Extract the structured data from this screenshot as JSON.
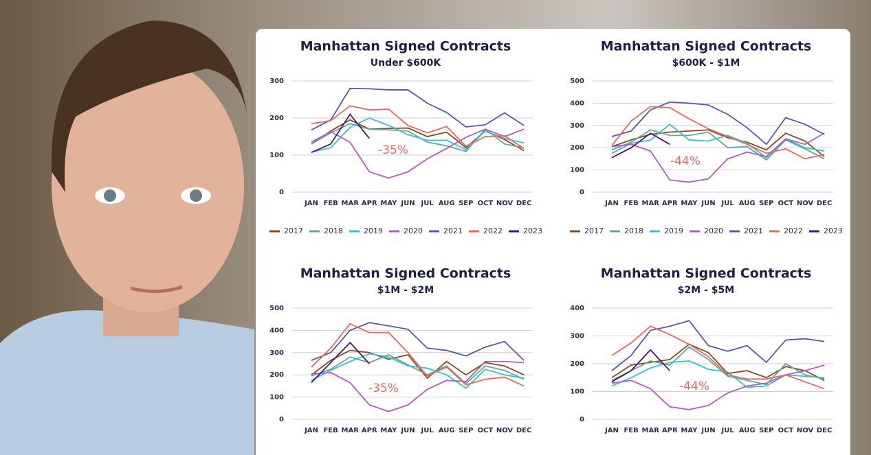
{
  "chart_data": [
    {
      "type": "line",
      "title": "Manhattan Signed Contracts",
      "subtitle": "Under $600K",
      "annotation": "-35%",
      "categories": [
        "JAN",
        "FEB",
        "MAR",
        "APR",
        "MAY",
        "JUN",
        "JUL",
        "AUG",
        "SEP",
        "OCT",
        "NOV",
        "DEC"
      ],
      "ylim": [
        0,
        300
      ],
      "yticks": [
        0,
        100,
        200,
        300
      ],
      "grid": true,
      "series": [
        {
          "name": "2017",
          "color": "#8a4a1c",
          "values": [
            130,
            165,
            195,
            170,
            172,
            173,
            150,
            162,
            120,
            165,
            142,
            112
          ]
        },
        {
          "name": "2018",
          "color": "#5fa89a",
          "values": [
            130,
            160,
            185,
            170,
            168,
            165,
            135,
            125,
            110,
            170,
            130,
            120
          ]
        },
        {
          "name": "2019",
          "color": "#2ec5d3",
          "values": [
            108,
            120,
            175,
            200,
            180,
            155,
            140,
            140,
            115,
            165,
            145,
            133
          ]
        },
        {
          "name": "2020",
          "color": "#b05cc0",
          "values": [
            135,
            163,
            135,
            55,
            38,
            55,
            90,
            118,
            148,
            170,
            150,
            170
          ]
        },
        {
          "name": "2021",
          "color": "#5a55b0",
          "values": [
            168,
            195,
            280,
            279,
            276,
            276,
            240,
            215,
            176,
            182,
            214,
            180
          ]
        },
        {
          "name": "2022",
          "color": "#f0665a",
          "values": [
            185,
            193,
            233,
            222,
            224,
            180,
            160,
            177,
            124,
            150,
            152,
            118
          ]
        },
        {
          "name": "2023",
          "color": "#4b1280",
          "values": [
            107,
            130,
            210,
            145,
            null,
            null,
            null,
            null,
            null,
            null,
            null,
            null
          ]
        }
      ]
    },
    {
      "type": "line",
      "title": "Manhattan Signed Contracts",
      "subtitle": "$600K - $1M",
      "annotation": "-44%",
      "categories": [
        "JAN",
        "FEB",
        "MAR",
        "APR",
        "MAY",
        "JUN",
        "JUL",
        "AUG",
        "SEP",
        "OCT",
        "NOV",
        "DEC"
      ],
      "ylim": [
        0,
        500
      ],
      "yticks": [
        0,
        100,
        200,
        300,
        400,
        500
      ],
      "grid": true,
      "series": [
        {
          "name": "2017",
          "color": "#8a4a1c",
          "values": [
            205,
            235,
            260,
            270,
            275,
            280,
            245,
            225,
            190,
            265,
            230,
            160
          ]
        },
        {
          "name": "2018",
          "color": "#5fa89a",
          "values": [
            190,
            225,
            280,
            255,
            255,
            270,
            200,
            205,
            145,
            235,
            195,
            150
          ]
        },
        {
          "name": "2019",
          "color": "#2ec5d3",
          "values": [
            175,
            220,
            235,
            305,
            235,
            230,
            255,
            220,
            155,
            240,
            200,
            185
          ]
        },
        {
          "name": "2020",
          "color": "#b05cc0",
          "values": [
            205,
            215,
            185,
            55,
            45,
            60,
            150,
            180,
            160,
            240,
            215,
            265
          ]
        },
        {
          "name": "2021",
          "color": "#5a55b0",
          "values": [
            250,
            275,
            370,
            405,
            400,
            392,
            350,
            290,
            215,
            335,
            305,
            260
          ]
        },
        {
          "name": "2022",
          "color": "#f0665a",
          "values": [
            210,
            320,
            385,
            380,
            330,
            285,
            250,
            215,
            175,
            195,
            150,
            170
          ]
        },
        {
          "name": "2023",
          "color": "#4b1280",
          "values": [
            155,
            200,
            265,
            215,
            null,
            null,
            null,
            null,
            null,
            null,
            null,
            null
          ]
        }
      ]
    },
    {
      "type": "line",
      "title": "Manhattan Signed Contracts",
      "subtitle": "$1M - $2M",
      "annotation": "-35%",
      "categories": [
        "JAN",
        "FEB",
        "MAR",
        "APR",
        "MAY",
        "JUN",
        "JUL",
        "AUG",
        "SEP",
        "OCT",
        "NOV",
        "DEC"
      ],
      "ylim": [
        0,
        500
      ],
      "yticks": [
        0,
        100,
        200,
        300,
        400,
        500
      ],
      "grid": true,
      "series": [
        {
          "color": "#8a4a1c",
          "values": [
            200,
            265,
            310,
            300,
            270,
            290,
            185,
            260,
            200,
            255,
            240,
            200
          ]
        },
        {
          "color": "#5fa89a",
          "values": [
            195,
            225,
            280,
            255,
            290,
            245,
            200,
            240,
            160,
            240,
            220,
            180
          ]
        },
        {
          "color": "#2ec5d3",
          "values": [
            175,
            220,
            260,
            295,
            280,
            240,
            230,
            200,
            140,
            225,
            200,
            185
          ]
        },
        {
          "color": "#b05cc0",
          "values": [
            205,
            210,
            165,
            65,
            35,
            65,
            135,
            175,
            170,
            260,
            260,
            255
          ]
        },
        {
          "color": "#5a55b0",
          "values": [
            265,
            300,
            400,
            435,
            420,
            405,
            320,
            310,
            285,
            325,
            350,
            265
          ]
        },
        {
          "color": "#f0665a",
          "values": [
            235,
            320,
            430,
            390,
            390,
            300,
            195,
            235,
            155,
            180,
            190,
            150
          ]
        },
        {
          "color": "#4b1280",
          "values": [
            165,
            255,
            345,
            250,
            null,
            null,
            null,
            null,
            null,
            null,
            null,
            null
          ]
        }
      ]
    },
    {
      "type": "line",
      "title": "Manhattan Signed Contracts",
      "subtitle": "$2M - $5M",
      "annotation": "-44%",
      "categories": [
        "JAN",
        "FEB",
        "MAR",
        "APR",
        "MAY",
        "JUN",
        "JUL",
        "AUG",
        "SEP",
        "OCT",
        "NOV",
        "DEC"
      ],
      "ylim": [
        0,
        400
      ],
      "yticks": [
        0,
        100,
        200,
        300,
        400
      ],
      "grid": true,
      "series": [
        {
          "color": "#8a4a1c",
          "values": [
            150,
            195,
            205,
            215,
            270,
            240,
            165,
            175,
            150,
            190,
            175,
            140
          ]
        },
        {
          "color": "#5fa89a",
          "values": [
            140,
            175,
            210,
            195,
            260,
            215,
            155,
            140,
            125,
            200,
            160,
            145
          ]
        },
        {
          "color": "#2ec5d3",
          "values": [
            120,
            150,
            185,
            205,
            210,
            180,
            170,
            115,
            120,
            160,
            155,
            150
          ]
        },
        {
          "color": "#b05cc0",
          "values": [
            130,
            140,
            110,
            45,
            35,
            50,
            95,
            120,
            130,
            160,
            175,
            195
          ]
        },
        {
          "color": "#5a55b0",
          "values": [
            175,
            230,
            320,
            335,
            355,
            265,
            245,
            265,
            205,
            285,
            290,
            280
          ]
        },
        {
          "color": "#f0665a",
          "values": [
            230,
            275,
            335,
            305,
            270,
            225,
            160,
            145,
            145,
            160,
            135,
            110
          ]
        },
        {
          "color": "#4b1280",
          "values": [
            135,
            175,
            250,
            175,
            null,
            null,
            null,
            null,
            null,
            null,
            null,
            null
          ]
        }
      ]
    }
  ]
}
